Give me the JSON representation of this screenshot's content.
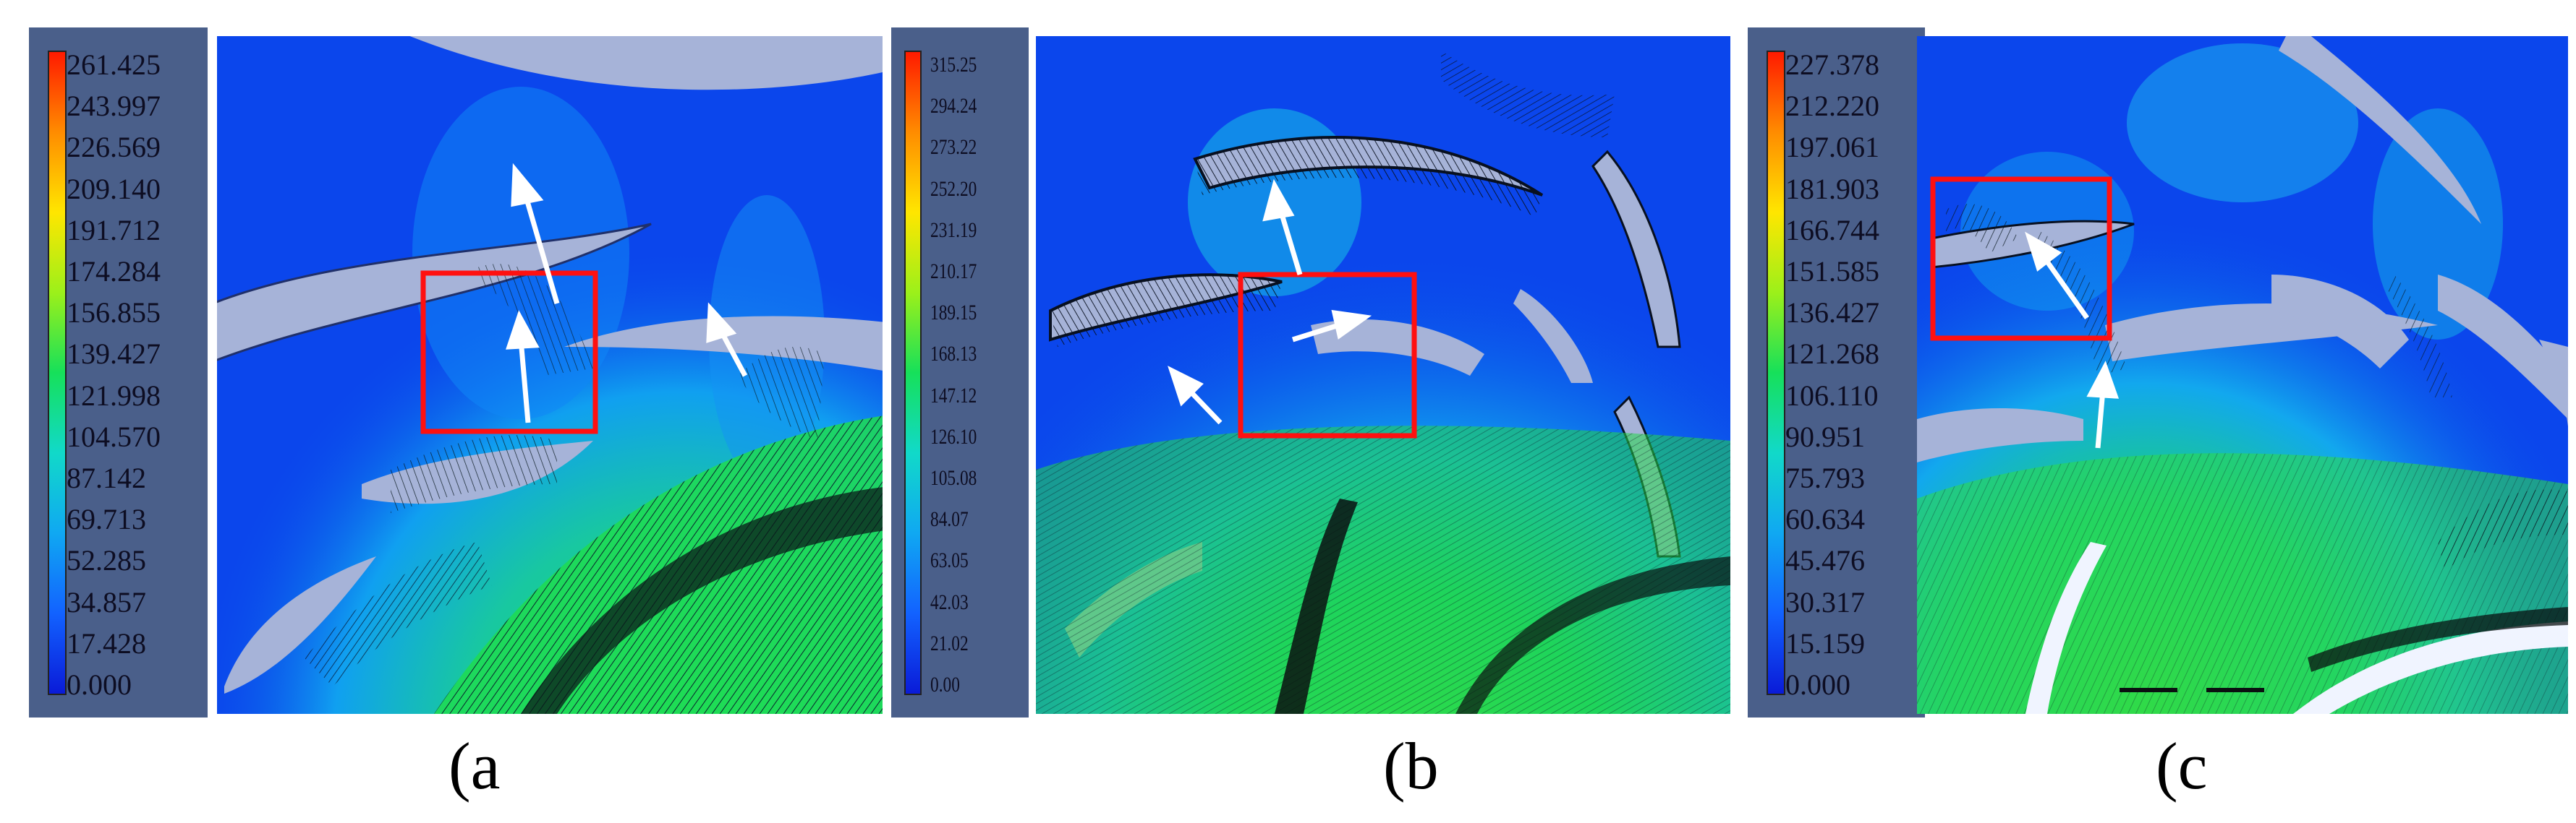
{
  "colorbars": [
    {
      "id": "a",
      "gradient": [
        "#ff1a00",
        "#ff8c00",
        "#ffe600",
        "#9cf01a",
        "#16e05a",
        "#11d9c9",
        "#10a8f2",
        "#1262ff",
        "#0a1bd8"
      ],
      "labels": [
        "261.425",
        "243.997",
        "226.569",
        "209.140",
        "191.712",
        "174.284",
        "156.855",
        "139.427",
        "121.998",
        "104.570",
        "87.142",
        "69.713",
        "52.285",
        "34.857",
        "17.428",
        "0.000"
      ]
    },
    {
      "id": "b",
      "gradient": [
        "#ff1a00",
        "#ff8c00",
        "#ffe600",
        "#9cf01a",
        "#16e05a",
        "#11d9c9",
        "#10a8f2",
        "#1262ff",
        "#0a1bd8"
      ],
      "labels": [
        "315.25",
        "294.24",
        "273.22",
        "252.20",
        "231.19",
        "210.17",
        "189.15",
        "168.13",
        "147.12",
        "126.10",
        "105.08",
        "84.07",
        "63.05",
        "42.03",
        "21.02",
        "0.00"
      ]
    },
    {
      "id": "c",
      "gradient": [
        "#ff1a00",
        "#ff8c00",
        "#ffe600",
        "#9cf01a",
        "#16e05a",
        "#11d9c9",
        "#10a8f2",
        "#1262ff",
        "#0a1bd8"
      ],
      "labels": [
        "227.378",
        "212.220",
        "197.061",
        "181.903",
        "166.744",
        "151.585",
        "136.427",
        "121.268",
        "106.110",
        "90.951",
        "75.793",
        "60.634",
        "45.476",
        "30.317",
        "15.159",
        "0.000"
      ]
    }
  ],
  "captions": {
    "a": "(a",
    "b": "(b",
    "c": "(c"
  }
}
